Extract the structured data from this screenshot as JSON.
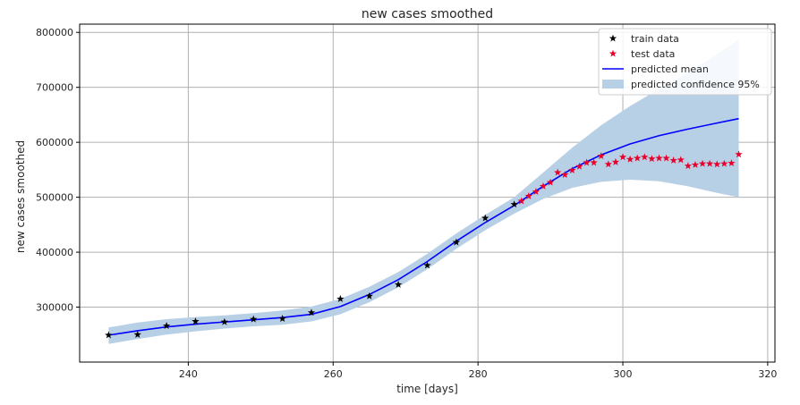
{
  "chart_data": {
    "type": "line",
    "title": "new cases smoothed",
    "xlabel": "time [days]",
    "ylabel": "new cases smoothed",
    "xlim": [
      225,
      321
    ],
    "ylim": [
      200000,
      815000
    ],
    "x_ticks": [
      240,
      260,
      280,
      300,
      320
    ],
    "y_ticks": [
      300000,
      400000,
      500000,
      600000,
      700000,
      800000
    ],
    "grid": true,
    "legend_position": "top-right",
    "series": [
      {
        "name": "train data",
        "kind": "scatter",
        "marker": "star",
        "color": "#000000",
        "x": [
          229,
          233,
          237,
          241,
          245,
          249,
          253,
          257,
          261,
          265,
          269,
          273,
          277,
          281,
          285
        ],
        "y": [
          249000,
          250000,
          266000,
          274000,
          273000,
          278000,
          279000,
          290000,
          315000,
          320000,
          341000,
          376000,
          418000,
          462000,
          487000
        ]
      },
      {
        "name": "test data",
        "kind": "scatter",
        "marker": "star",
        "color": "#e8002a",
        "x": [
          286,
          287,
          288,
          289,
          290,
          291,
          292,
          293,
          294,
          295,
          296,
          297,
          298,
          299,
          300,
          301,
          302,
          303,
          304,
          305,
          306,
          307,
          308,
          309,
          310,
          311,
          312,
          313,
          314,
          315,
          316
        ],
        "y": [
          493000,
          502000,
          510000,
          520000,
          527000,
          545000,
          541000,
          549000,
          556000,
          563000,
          563000,
          575000,
          560000,
          564000,
          573000,
          569000,
          571000,
          573000,
          570000,
          571000,
          571000,
          567000,
          568000,
          557000,
          559000,
          561000,
          561000,
          560000,
          561000,
          562000,
          578000
        ]
      },
      {
        "name": "predicted mean",
        "kind": "line",
        "color": "#0000ff",
        "x": [
          229,
          233,
          237,
          241,
          245,
          249,
          253,
          257,
          261,
          265,
          269,
          273,
          277,
          281,
          285,
          289,
          293,
          297,
          301,
          305,
          309,
          313,
          316
        ],
        "y": [
          249000,
          257000,
          264000,
          269000,
          273000,
          277000,
          281000,
          287000,
          301000,
          323000,
          350000,
          383000,
          420000,
          454000,
          485000,
          520000,
          552000,
          577000,
          597000,
          612000,
          624000,
          635000,
          643000
        ]
      },
      {
        "name": "predicted confidence 95%",
        "kind": "band",
        "color": "#b8d0e6",
        "x": [
          229,
          233,
          237,
          241,
          245,
          249,
          253,
          257,
          261,
          265,
          269,
          273,
          277,
          281,
          285,
          289,
          293,
          297,
          301,
          305,
          309,
          313,
          316
        ],
        "lower": [
          233000,
          242000,
          250000,
          256000,
          261000,
          265000,
          268000,
          274000,
          287000,
          309000,
          336000,
          369000,
          406000,
          440000,
          470000,
          497000,
          517000,
          528000,
          532000,
          529000,
          520000,
          508000,
          500000
        ],
        "upper": [
          263000,
          272000,
          278000,
          282000,
          285000,
          289000,
          294000,
          301000,
          315000,
          337000,
          364000,
          397000,
          434000,
          468000,
          500000,
          545000,
          590000,
          631000,
          666000,
          697000,
          727000,
          760000,
          787000
        ]
      }
    ]
  }
}
